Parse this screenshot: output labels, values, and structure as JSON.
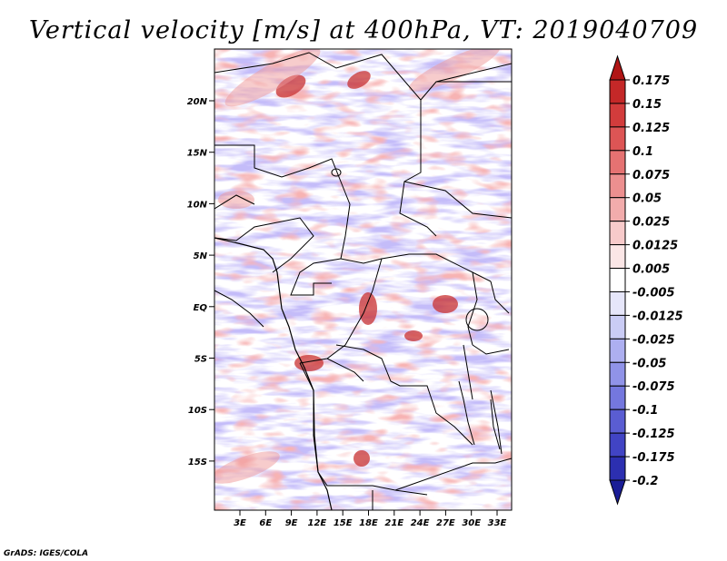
{
  "title": "Vertical velocity [m/s] at 400hPa, VT: 2019040709",
  "credit": "GrADS: IGES/COLA",
  "lat_labels": [
    "20N",
    "15N",
    "10N",
    "5N",
    "EQ",
    "5S",
    "10S",
    "15S"
  ],
  "lon_labels": [
    "3E",
    "6E",
    "9E",
    "12E",
    "15E",
    "18E",
    "21E",
    "24E",
    "27E",
    "30E",
    "33E"
  ],
  "colorbar": {
    "labels": [
      "0.175",
      "0.15",
      "0.125",
      "0.1",
      "0.075",
      "0.05",
      "0.025",
      "0.0125",
      "0.005",
      "-0.005",
      "-0.0125",
      "-0.025",
      "-0.05",
      "-0.075",
      "-0.1",
      "-0.125",
      "-0.175",
      "-0.2"
    ],
    "colors": [
      "#b01515",
      "#c42828",
      "#d23c3c",
      "#dd5555",
      "#e57272",
      "#ec8f8f",
      "#f2acac",
      "#f7caca",
      "#fbe6e6",
      "#ffffff",
      "#e6e6fa",
      "#caccf5",
      "#adaff0",
      "#9093e8",
      "#7477de",
      "#5a5dd2",
      "#4144c4",
      "#2c2fb0",
      "#1a1d96"
    ]
  }
}
